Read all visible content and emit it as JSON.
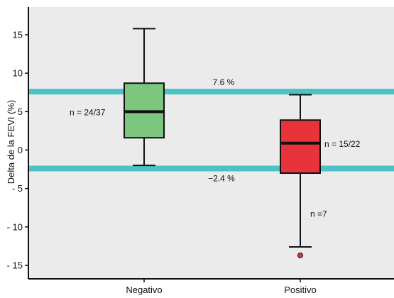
{
  "chart_data": {
    "type": "boxplot",
    "ylabel": "Delta de la FEVI (%)",
    "ylim": [
      -16.5,
      18.5
    ],
    "yticks": [
      15,
      10,
      5,
      0,
      -5,
      -10,
      -15
    ],
    "ytick_labels": [
      "15",
      "10",
      "5",
      "0",
      "- 5",
      "- 10",
      "- 15"
    ],
    "categories": [
      "Negativo",
      "Positivo"
    ],
    "boxes": [
      {
        "category": "Negativo",
        "whisker_low": -2.0,
        "q1": 1.6,
        "median": 5.0,
        "q3": 8.7,
        "whisker_high": 15.8,
        "outliers": [],
        "color": "#7dc67e"
      },
      {
        "category": "Positivo",
        "whisker_low": -12.6,
        "q1": -3.0,
        "median": 0.9,
        "q3": 3.9,
        "whisker_high": 7.2,
        "outliers": [
          -13.7
        ],
        "color": "#e8333a"
      }
    ],
    "reference_lines": [
      {
        "y": 7.6,
        "label": "7.6 %",
        "color": "#4cc2c4"
      },
      {
        "y": -2.4,
        "label": "−2.4 %",
        "color": "#4cc2c4"
      }
    ],
    "annotations": [
      {
        "text": "n  =  24/37"
      },
      {
        "text": "n  =  15/22"
      },
      {
        "text": "n  =7"
      }
    ],
    "plot_background": "#ebebeb",
    "grid": false
  }
}
